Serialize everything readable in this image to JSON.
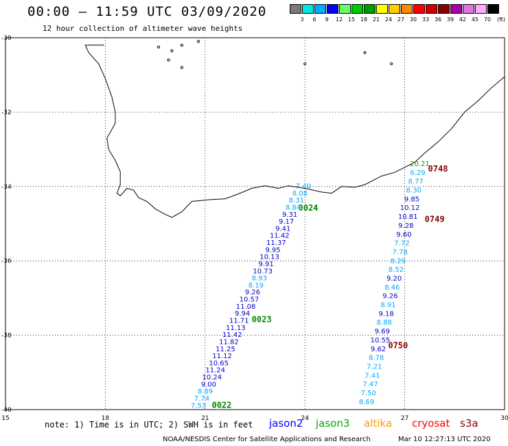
{
  "header": {
    "title": "00:00 – 11:59 UTC 03/09/2020",
    "subtitle": "12 hour collection of altimeter wave heights"
  },
  "colorbar": {
    "colors": [
      "#7a7a7a",
      "#00e6e6",
      "#00aaff",
      "#0000ff",
      "#66ff66",
      "#00cc00",
      "#009900",
      "#ffff00",
      "#ffcc00",
      "#ff8800",
      "#ff0000",
      "#cc0000",
      "#880000",
      "#aa00aa",
      "#dd77dd",
      "#ffaaff",
      "#000000"
    ],
    "labels": [
      "3",
      "6",
      "9",
      "12",
      "15",
      "18",
      "21",
      "24",
      "27",
      "30",
      "33",
      "36",
      "39",
      "42",
      "45",
      "70"
    ],
    "unit": "(ft)"
  },
  "map": {
    "lon_ticks": [
      "15",
      "18",
      "21",
      "24",
      "27",
      "30"
    ],
    "lat_ticks": [
      "-30",
      "-32",
      "-34",
      "-36",
      "-38",
      "-40"
    ]
  },
  "track_labels": [
    {
      "text": "0022",
      "color": "#008800",
      "lon": 21.2,
      "lat": -39.95
    },
    {
      "text": "0023",
      "color": "#008800",
      "lon": 22.4,
      "lat": -37.65
    },
    {
      "text": "0024",
      "color": "#008800",
      "lon": 23.8,
      "lat": -34.65
    },
    {
      "text": "0748",
      "color": "#880000",
      "lon": 27.7,
      "lat": -33.6
    },
    {
      "text": "0749",
      "color": "#880000",
      "lon": 27.6,
      "lat": -34.95
    },
    {
      "text": "0750",
      "color": "#880000",
      "lon": 26.5,
      "lat": -38.35
    }
  ],
  "swh_track_west": {
    "values": [
      "7.40",
      "8.08",
      "8.31",
      "8.84",
      "9.31",
      "9.17",
      "9.41",
      "11.42",
      "11.37",
      "9.95",
      "10.13",
      "9.91",
      "10.73",
      "8.93",
      "8.19",
      "9.26",
      "10.57",
      "11.08",
      "9.94",
      "11.71",
      "11.13",
      "11.42",
      "11.82",
      "11.25",
      "11.12",
      "10.65",
      "11.24",
      "10.24",
      "9.00",
      "8.89",
      "7.74",
      "7.53"
    ],
    "colors": [
      "#00aaff",
      "#00aaff",
      "#00aaff",
      "#00aaff",
      "#0000cc",
      "#0000cc",
      "#0000cc",
      "#0000cc",
      "#0000cc",
      "#0000cc",
      "#0000cc",
      "#0000cc",
      "#0000cc",
      "#00aaff",
      "#00aaff",
      "#0000cc",
      "#0000cc",
      "#0000cc",
      "#0000cc",
      "#0000cc",
      "#0000cc",
      "#0000cc",
      "#0000cc",
      "#0000cc",
      "#0000cc",
      "#0000cc",
      "#0000cc",
      "#0000cc",
      "#0000cc",
      "#00aaff",
      "#00aaff",
      "#00aaff"
    ]
  },
  "swh_track_east": {
    "values": [
      "20.21",
      "6.29",
      "8.77",
      "8.30",
      "9.85",
      "10.12",
      "10.81",
      "9.28",
      "9.60",
      "7.72",
      "7.78",
      "8.29",
      "8.52",
      "9.20",
      "8.46",
      "9.26",
      "8.91",
      "9.18",
      "8.88",
      "9.69",
      "10.55",
      "9.62",
      "8.78",
      "7.21",
      "7.41",
      "7.47",
      "7.50",
      "8.69"
    ],
    "colors": [
      "#009900",
      "#00aaff",
      "#00aaff",
      "#00aaff",
      "#0000cc",
      "#0000cc",
      "#0000cc",
      "#0000cc",
      "#0000cc",
      "#00aaff",
      "#00aaff",
      "#00aaff",
      "#00aaff",
      "#0000cc",
      "#00aaff",
      "#0000cc",
      "#00aaff",
      "#0000cc",
      "#00aaff",
      "#0000cc",
      "#0000cc",
      "#0000cc",
      "#00aaff",
      "#00aaff",
      "#00aaff",
      "#00aaff",
      "#00aaff",
      "#00aaff"
    ]
  },
  "footer": {
    "note": "note:  1) Time is in UTC; 2) SWH is in feet",
    "credit": "NOAA/NESDIS Center for Satellite Applications and Research",
    "timestamp": "Mar 10 12:27:13 UTC 2020"
  },
  "legend": [
    {
      "name": "jason2",
      "color": "#0000ff"
    },
    {
      "name": "jason3",
      "color": "#00aa00"
    },
    {
      "name": "altika",
      "color": "#ff9900"
    },
    {
      "name": "cryosat",
      "color": "#ff0000"
    },
    {
      "name": "s3a",
      "color": "#880000"
    }
  ]
}
